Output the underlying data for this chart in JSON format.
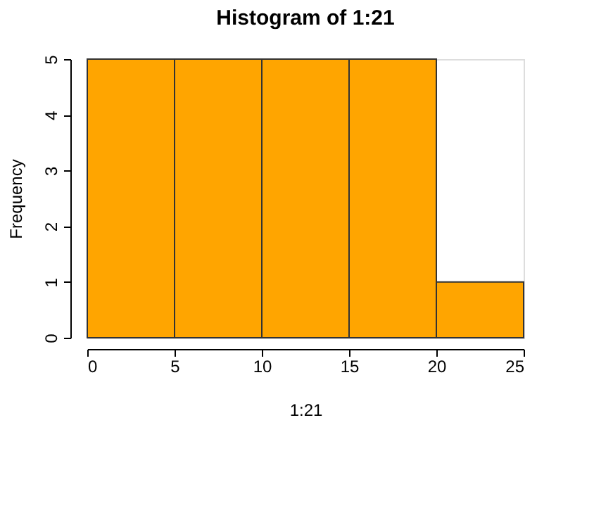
{
  "chart_data": {
    "type": "histogram",
    "title": "Histogram of 1:21",
    "xlabel": "1:21",
    "ylabel": "Frequency",
    "bins": [
      0,
      5,
      10,
      15,
      20,
      25
    ],
    "values": [
      5,
      5,
      5,
      5,
      1
    ],
    "color": "#ffa500",
    "xlim": [
      0,
      25
    ],
    "xticks": [
      0,
      5,
      10,
      15,
      20,
      25
    ],
    "ylim": [
      0,
      5
    ],
    "yticks": [
      0,
      1,
      2,
      3,
      4,
      5
    ],
    "grid": false
  }
}
